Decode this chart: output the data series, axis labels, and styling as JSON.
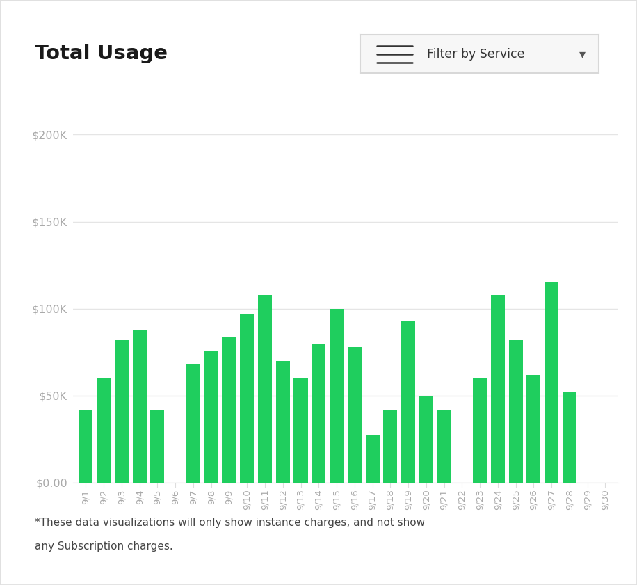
{
  "title": "Total Usage",
  "filter_label": "Filter by Service",
  "bar_color": "#1fce5e",
  "background_color": "#ffffff",
  "grid_color": "#e5e5e5",
  "axis_color": "#dddddd",
  "title_color": "#1a1a1a",
  "tick_color": "#aaaaaa",
  "border_color": "#e0e0e0",
  "footnote_color": "#444444",
  "btn_bg": "#f7f7f7",
  "btn_border": "#d8d8d8",
  "btn_text_color": "#333333",
  "footnote": "*These data visualizations will only show instance charges, and not show\nany Subscription charges.",
  "categories": [
    "9/1",
    "9/2",
    "9/3",
    "9/4",
    "9/5",
    "9/6",
    "9/7",
    "9/8",
    "9/9",
    "9/10",
    "9/11",
    "9/12",
    "9/13",
    "9/14",
    "9/15",
    "9/16",
    "9/17",
    "9/18",
    "9/19",
    "9/20",
    "9/21",
    "9/22",
    "9/23",
    "9/24",
    "9/25",
    "9/26",
    "9/27",
    "9/28",
    "9/29",
    "9/30"
  ],
  "values": [
    42000,
    60000,
    82000,
    88000,
    42000,
    0,
    68000,
    76000,
    84000,
    97000,
    108000,
    70000,
    60000,
    80000,
    100000,
    78000,
    27000,
    42000,
    93000,
    50000,
    42000,
    0,
    60000,
    108000,
    82000,
    62000,
    115000,
    52000,
    0,
    0
  ],
  "ylim": [
    0,
    200000
  ],
  "yticks": [
    0,
    50000,
    100000,
    150000,
    200000
  ],
  "ytick_labels": [
    "$0.00",
    "$50K",
    "$100K",
    "$150K",
    "$200K"
  ],
  "bar_gap": 0.22
}
